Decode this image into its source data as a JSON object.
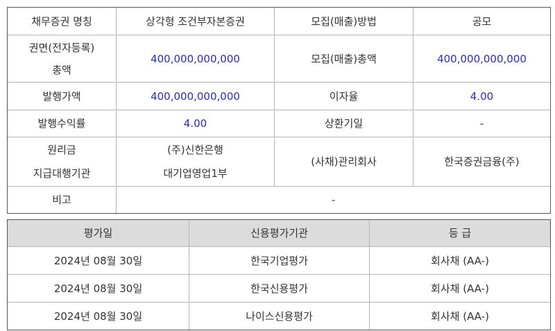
{
  "bond": {
    "rows": [
      [
        "채무증권 명칭",
        "상각형 조건부자본증권",
        "모집(매출)방법",
        "공모"
      ],
      [
        "권면(전자등록)\n총액",
        "400,000,000,000",
        "모집(매출)총액",
        "400,000,000,000"
      ],
      [
        "발행가액",
        "400,000,000,000",
        "이자율",
        "4.00"
      ],
      [
        "발행수익률",
        "4.00",
        "상환기일",
        "-"
      ],
      [
        "원리금\n지급대행기관",
        "(주)신한은행\n대기업영업1부",
        "(사채)관리회사",
        "한국증권금융(주)"
      ]
    ],
    "remark_label": "비고",
    "remark_value": "-"
  },
  "ratings": {
    "headers": [
      "평가일",
      "신용평가기관",
      "등 급"
    ],
    "rows": [
      [
        "2024년 08월 30일",
        "한국기업평가",
        "회사채 (AA-)"
      ],
      [
        "2024년 08월 30일",
        "한국신용평가",
        "회사채 (AA-)"
      ],
      [
        "2024년 08월 30일",
        "나이스신용평가",
        "회사채 (AA-)"
      ]
    ]
  },
  "colors": {
    "value_blue": "#2a2ad4",
    "header_bg": "#dcdcdc"
  }
}
